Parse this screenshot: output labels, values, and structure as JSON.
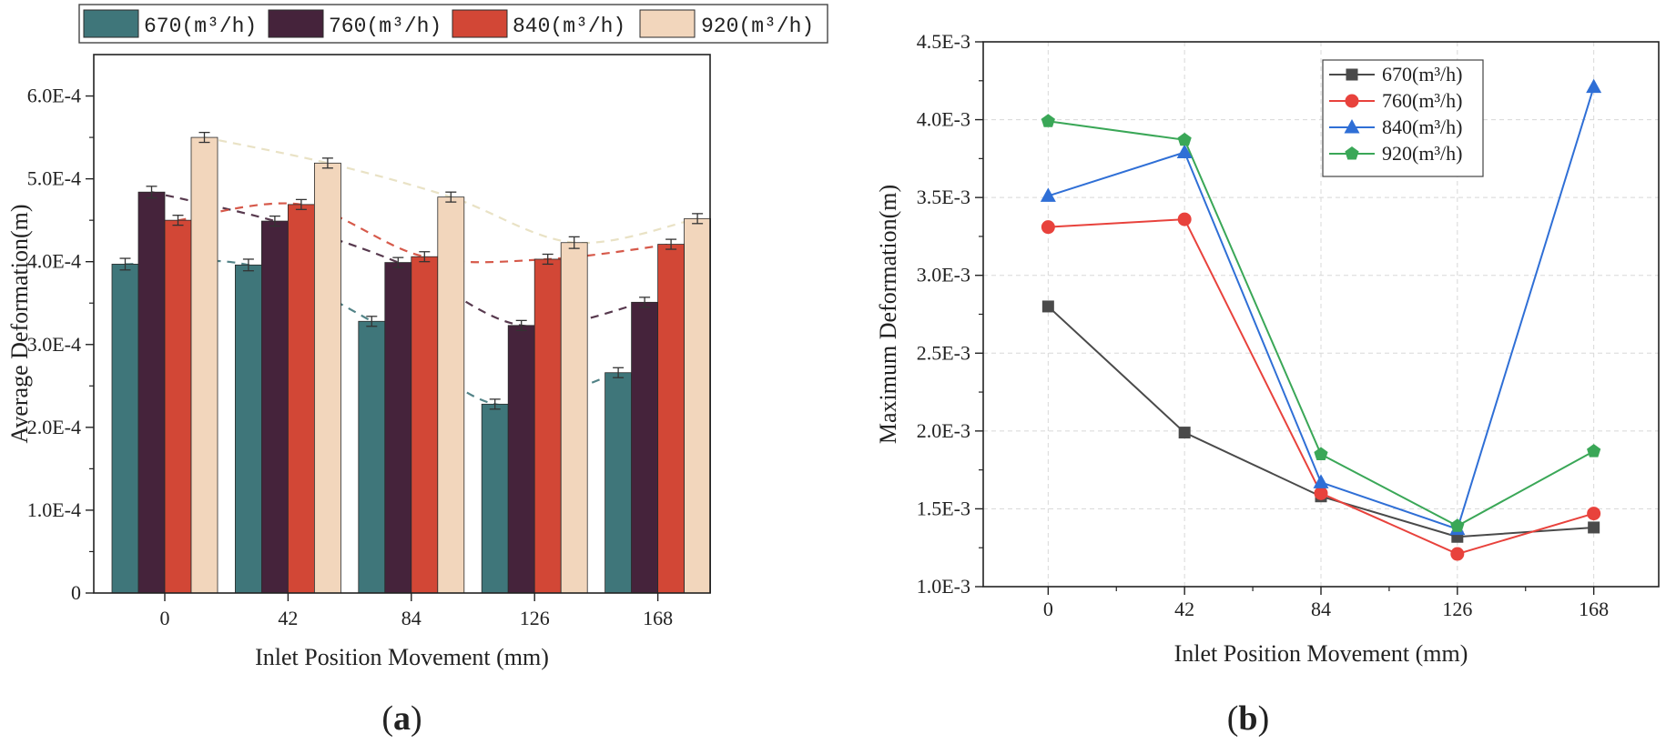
{
  "chart_data": [
    {
      "type": "bar",
      "panel_label": "a",
      "categories": [
        "0",
        "42",
        "84",
        "126",
        "168"
      ],
      "xlabel": "Inlet Position Movement (mm)",
      "ylabel": "Average Deformation(m)",
      "ylim": [
        0,
        0.00065
      ],
      "yticks": [
        {
          "value": 0,
          "label": "0"
        },
        {
          "value": 0.0001,
          "label": "1.0E-4"
        },
        {
          "value": 0.0002,
          "label": "2.0E-4"
        },
        {
          "value": 0.0003,
          "label": "3.0E-4"
        },
        {
          "value": 0.0004,
          "label": "4.0E-4"
        },
        {
          "value": 0.0005,
          "label": "5.0E-4"
        },
        {
          "value": 0.0006,
          "label": "6.0E-4"
        }
      ],
      "legend_position": "top",
      "error_bars": true,
      "trend_lines": "dashed",
      "series": [
        {
          "name": "670(m³/h)",
          "color": "#3f767a",
          "values": [
            0.000397,
            0.000396,
            0.000328,
            0.000228,
            0.000266
          ],
          "errors": [
            7e-06,
            7e-06,
            6e-06,
            6e-06,
            6e-06
          ]
        },
        {
          "name": "760(m³/h)",
          "color": "#45233b",
          "values": [
            0.000484,
            0.000449,
            0.000399,
            0.000323,
            0.000351
          ],
          "errors": [
            7e-06,
            6e-06,
            6e-06,
            6e-06,
            6e-06
          ]
        },
        {
          "name": "840(m³/h)",
          "color": "#d24736",
          "values": [
            0.00045,
            0.000469,
            0.000406,
            0.000403,
            0.000421
          ],
          "errors": [
            6e-06,
            6e-06,
            6e-06,
            6e-06,
            6e-06
          ]
        },
        {
          "name": "920(m³/h)",
          "color": "#f2d6bc",
          "values": [
            0.00055,
            0.000519,
            0.000478,
            0.000423,
            0.000452
          ],
          "errors": [
            6e-06,
            6e-06,
            6e-06,
            7e-06,
            6e-06
          ]
        }
      ]
    },
    {
      "type": "line",
      "panel_label": "b",
      "x": [
        0,
        42,
        84,
        126,
        168
      ],
      "xticks": [
        "0",
        "42",
        "84",
        "126",
        "168"
      ],
      "xlabel": "Inlet Position Movement (mm)",
      "ylabel": "Maximum Deformation(m)",
      "xlim": [
        -20,
        188
      ],
      "ylim": [
        0.001,
        0.0045
      ],
      "yticks": [
        {
          "value": 0.001,
          "label": "1.0E-3"
        },
        {
          "value": 0.0015,
          "label": "1.5E-3"
        },
        {
          "value": 0.002,
          "label": "2.0E-3"
        },
        {
          "value": 0.0025,
          "label": "2.5E-3"
        },
        {
          "value": 0.003,
          "label": "3.0E-3"
        },
        {
          "value": 0.0035,
          "label": "3.5E-3"
        },
        {
          "value": 0.004,
          "label": "4.0E-3"
        },
        {
          "value": 0.0045,
          "label": "4.5E-3"
        }
      ],
      "grid": true,
      "legend_position": "top-center",
      "series": [
        {
          "name": "670(m³/h)",
          "color": "#4a4a4a",
          "marker": "square",
          "values": [
            0.0028,
            0.00199,
            0.00158,
            0.00132,
            0.00138
          ]
        },
        {
          "name": "760(m³/h)",
          "color": "#e8423c",
          "marker": "circle",
          "values": [
            0.00331,
            0.00336,
            0.0016,
            0.00121,
            0.00147
          ]
        },
        {
          "name": "840(m³/h)",
          "color": "#2f6fd6",
          "marker": "triangle",
          "values": [
            0.00351,
            0.00379,
            0.00167,
            0.00137,
            0.00421
          ]
        },
        {
          "name": "920(m³/h)",
          "color": "#3aa757",
          "marker": "pentagon",
          "values": [
            0.00399,
            0.00387,
            0.00185,
            0.00139,
            0.00187
          ]
        }
      ]
    }
  ]
}
